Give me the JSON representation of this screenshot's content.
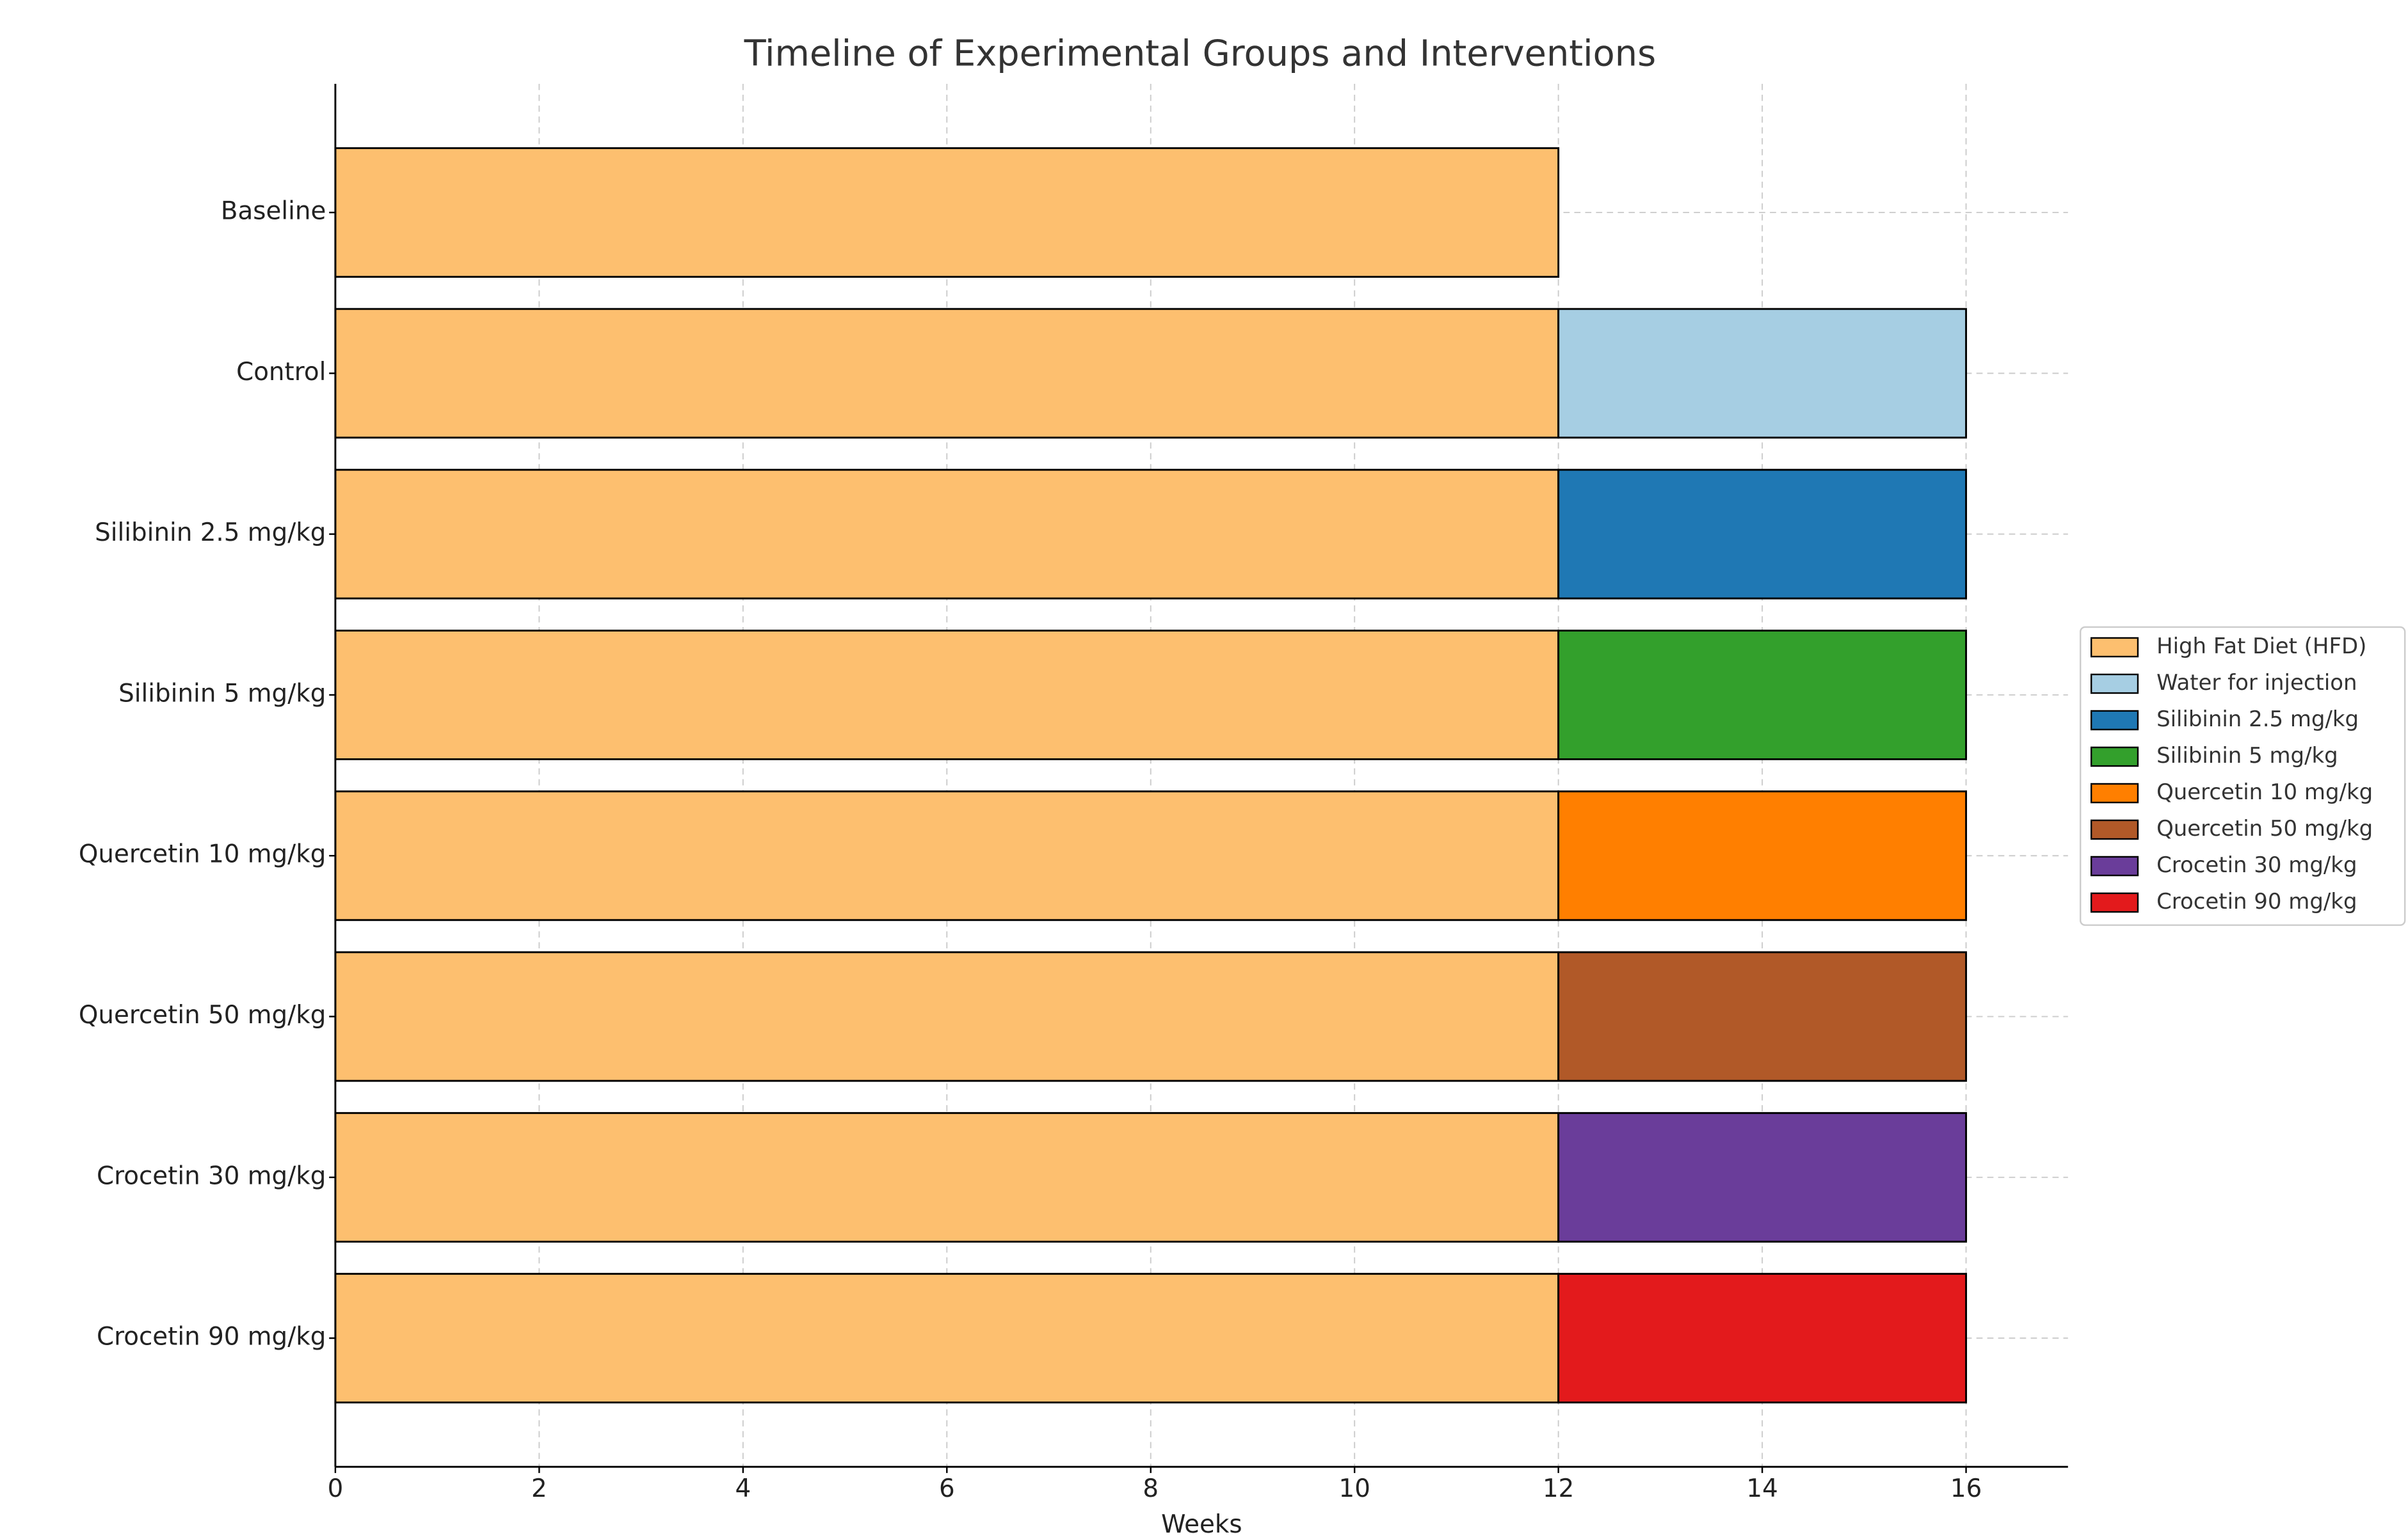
{
  "chart_data": {
    "type": "stacked-barh",
    "title": "Timeline of Experimental Groups and Interventions",
    "xlabel": "Weeks",
    "categories": [
      "Baseline",
      "Control",
      "Silibinin 2.5 mg/kg",
      "Silibinin 5 mg/kg",
      "Quercetin 10 mg/kg",
      "Quercetin 50 mg/kg",
      "Crocetin 30 mg/kg",
      "Crocetin 90 mg/kg"
    ],
    "series": [
      {
        "name": "High Fat Diet (HFD)",
        "color": "#fdbf6f",
        "values": [
          12,
          12,
          12,
          12,
          12,
          12,
          12,
          12
        ]
      },
      {
        "name": "Water for injection",
        "color": "#a6cee3",
        "values": [
          null,
          4,
          null,
          null,
          null,
          null,
          null,
          null
        ]
      },
      {
        "name": "Silibinin 2.5 mg/kg",
        "color": "#1f78b4",
        "values": [
          null,
          null,
          4,
          null,
          null,
          null,
          null,
          null
        ]
      },
      {
        "name": "Silibinin 5 mg/kg",
        "color": "#33a02c",
        "values": [
          null,
          null,
          null,
          4,
          null,
          null,
          null,
          null
        ]
      },
      {
        "name": "Quercetin 10 mg/kg",
        "color": "#ff7f00",
        "values": [
          null,
          null,
          null,
          null,
          4,
          null,
          null,
          null
        ]
      },
      {
        "name": "Quercetin 50 mg/kg",
        "color": "#b15928",
        "values": [
          null,
          null,
          null,
          null,
          null,
          4,
          null,
          null
        ]
      },
      {
        "name": "Crocetin 30 mg/kg",
        "color": "#6a3d9a",
        "values": [
          null,
          null,
          null,
          null,
          null,
          null,
          4,
          null
        ]
      },
      {
        "name": "Crocetin 90 mg/kg",
        "color": "#e31a1c",
        "values": [
          null,
          null,
          null,
          null,
          null,
          null,
          null,
          4
        ]
      }
    ],
    "xlim": [
      0,
      17
    ],
    "xticks": [
      0,
      2,
      4,
      6,
      8,
      10,
      12,
      14,
      16
    ],
    "grid": true,
    "legend": "right"
  }
}
